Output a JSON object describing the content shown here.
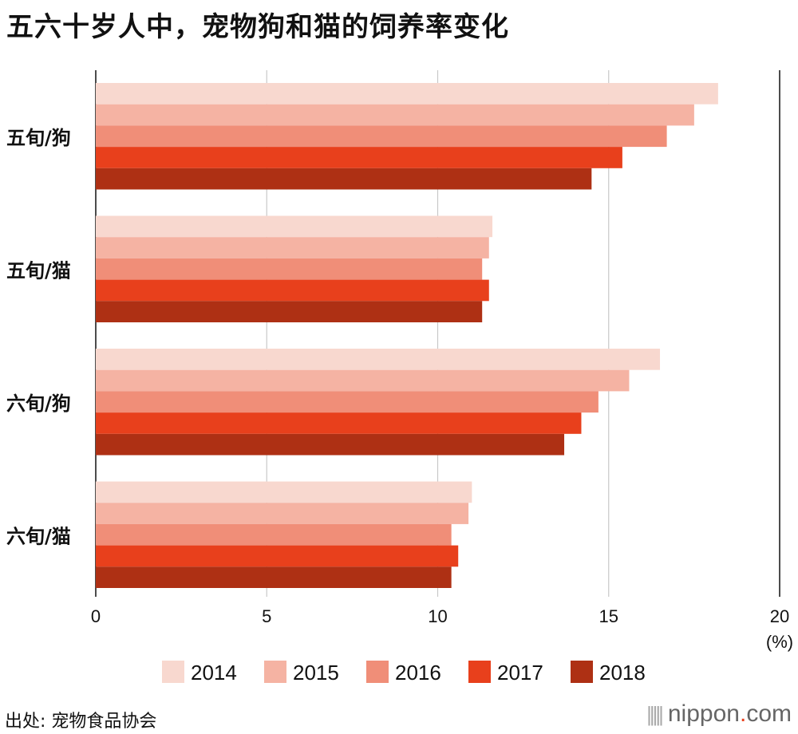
{
  "title": "五六十岁人中，宠物狗和猫的饲养率变化",
  "source": "出处: 宠物食品协会",
  "brand": {
    "name": "nippon",
    "dot": ".",
    "tld": "com"
  },
  "chart_data": {
    "type": "bar",
    "orientation": "horizontal",
    "title": "五六十岁人中，宠物狗和猫的饲养率变化",
    "categories": [
      "五旬/狗",
      "五旬/猫",
      "六旬/狗",
      "六旬/猫"
    ],
    "series": [
      {
        "name": "2014",
        "color": "#f8d8cf",
        "values": [
          18.2,
          11.6,
          16.5,
          11.0
        ]
      },
      {
        "name": "2015",
        "color": "#f5b3a3",
        "values": [
          17.5,
          11.5,
          15.6,
          10.9
        ]
      },
      {
        "name": "2016",
        "color": "#f08e78",
        "values": [
          16.7,
          11.3,
          14.7,
          10.4
        ]
      },
      {
        "name": "2017",
        "color": "#e8401c",
        "values": [
          15.4,
          11.5,
          14.2,
          10.6
        ]
      },
      {
        "name": "2018",
        "color": "#ae3014",
        "values": [
          14.5,
          11.3,
          13.7,
          10.4
        ]
      }
    ],
    "xlim": [
      0,
      20
    ],
    "xticks": [
      0,
      5,
      10,
      15,
      20
    ],
    "xunit": "(%)",
    "grid": true,
    "legend": "bottom"
  }
}
